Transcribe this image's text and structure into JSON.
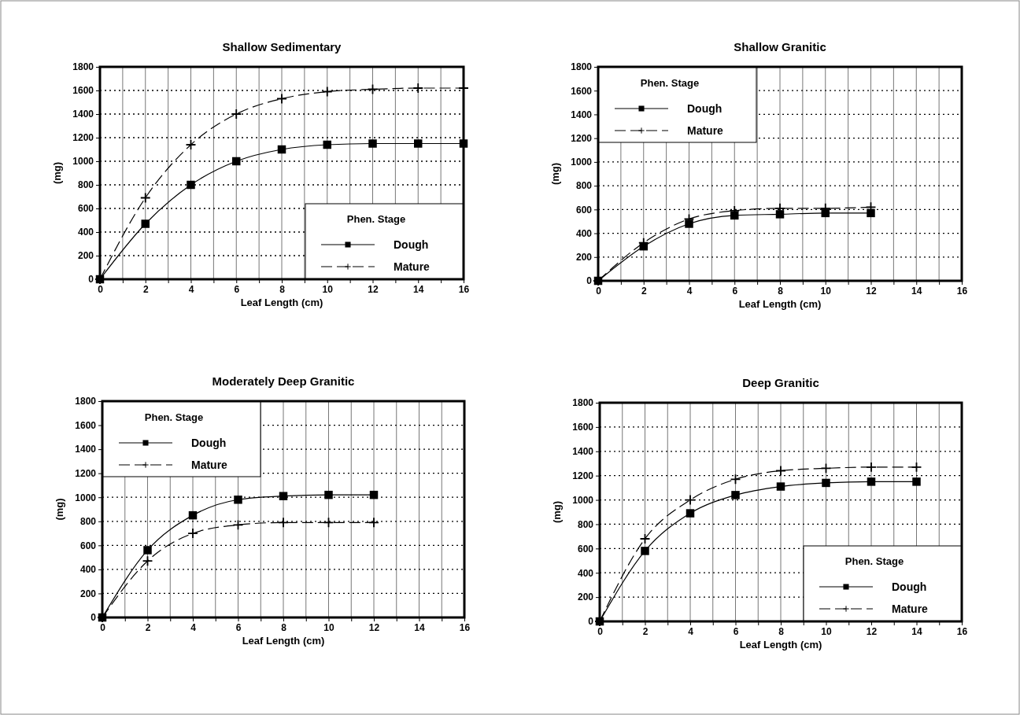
{
  "chart_data": [
    {
      "type": "line",
      "title": "Shallow Sedimentary",
      "xlabel": "Leaf Length (cm)",
      "ylabel": "(mg)",
      "legend_title": "Phen. Stage",
      "legend": "bottom right",
      "grid": true,
      "xlim": [
        0,
        16
      ],
      "ylim": [
        0,
        1800
      ],
      "xticks": [
        0,
        {
          "value": 1,
          "label": null
        },
        2,
        {
          "value": 3,
          "label": null
        },
        4,
        {
          "value": 5,
          "label": null
        },
        6,
        {
          "value": 7,
          "label": null
        },
        8,
        {
          "value": 9,
          "label": null
        },
        10,
        {
          "value": 11,
          "label": null
        },
        12,
        {
          "value": 13,
          "label": null
        },
        14,
        {
          "value": 15,
          "label": null
        },
        16
      ],
      "yticks": [
        0,
        200,
        400,
        600,
        800,
        1000,
        1200,
        1400,
        1600,
        1800
      ],
      "series": [
        {
          "name": "Dough",
          "color": "#000000",
          "marker": "square",
          "line_style": "solid",
          "x": [
            0,
            2,
            4,
            6,
            8,
            10,
            12,
            14,
            16
          ],
          "values": [
            0,
            470,
            800,
            1000,
            1100,
            1140,
            1150,
            1150,
            1150
          ]
        },
        {
          "name": "Mature",
          "color": "#000000",
          "marker": "cross",
          "line_style": "dashed",
          "x": [
            0,
            2,
            4,
            6,
            8,
            10,
            12,
            14,
            16
          ],
          "values": [
            0,
            690,
            1140,
            1400,
            1530,
            1590,
            1610,
            1620,
            1620
          ]
        }
      ]
    },
    {
      "type": "line",
      "title": "Shallow Granitic",
      "xlabel": "Leaf Length (cm)",
      "ylabel": "(mg)",
      "legend_title": "Phen. Stage",
      "legend": "top left",
      "grid": true,
      "xlim": [
        0,
        16
      ],
      "ylim": [
        0,
        1800
      ],
      "xticks": [
        0,
        {
          "value": 1,
          "label": null
        },
        2,
        {
          "value": 3,
          "label": null
        },
        4,
        {
          "value": 5,
          "label": null
        },
        6,
        {
          "value": 7,
          "label": null
        },
        8,
        {
          "value": 9,
          "label": null
        },
        10,
        {
          "value": 11,
          "label": null
        },
        12,
        {
          "value": 13,
          "label": null
        },
        14,
        {
          "value": 15,
          "label": null
        },
        16
      ],
      "yticks": [
        0,
        200,
        400,
        600,
        800,
        1000,
        1200,
        1400,
        1600,
        1800
      ],
      "series": [
        {
          "name": "Dough",
          "color": "#000000",
          "marker": "square",
          "line_style": "solid",
          "x": [
            0,
            2,
            4,
            6,
            8,
            10,
            12
          ],
          "values": [
            0,
            290,
            480,
            550,
            560,
            570,
            570
          ]
        },
        {
          "name": "Mature",
          "color": "#000000",
          "marker": "cross",
          "line_style": "dashed",
          "x": [
            0,
            2,
            4,
            6,
            8,
            10,
            12
          ],
          "values": [
            0,
            320,
            520,
            590,
            610,
            610,
            620
          ]
        }
      ]
    },
    {
      "type": "line",
      "title": "Moderately Deep Granitic",
      "xlabel": "Leaf Length (cm)",
      "ylabel": "(mg)",
      "legend_title": "Phen. Stage",
      "legend": "top left",
      "grid": true,
      "xlim": [
        0,
        16
      ],
      "ylim": [
        0,
        1800
      ],
      "xticks": [
        0,
        {
          "value": 1,
          "label": null
        },
        2,
        {
          "value": 3,
          "label": null
        },
        4,
        {
          "value": 5,
          "label": null
        },
        6,
        {
          "value": 7,
          "label": null
        },
        8,
        {
          "value": 9,
          "label": null
        },
        10,
        {
          "value": 11,
          "label": null
        },
        12,
        {
          "value": 13,
          "label": null
        },
        14,
        {
          "value": 15,
          "label": null
        },
        16
      ],
      "yticks": [
        0,
        200,
        400,
        600,
        800,
        1000,
        1200,
        1400,
        1600,
        1800
      ],
      "series": [
        {
          "name": "Dough",
          "color": "#000000",
          "marker": "square",
          "line_style": "solid",
          "x": [
            0,
            2,
            4,
            6,
            8,
            10,
            12
          ],
          "values": [
            0,
            560,
            850,
            980,
            1010,
            1020,
            1020
          ]
        },
        {
          "name": "Mature",
          "color": "#000000",
          "marker": "cross",
          "line_style": "dashed",
          "x": [
            0,
            2,
            4,
            6,
            8,
            10,
            12
          ],
          "values": [
            0,
            470,
            700,
            770,
            790,
            790,
            790
          ]
        }
      ]
    },
    {
      "type": "line",
      "title": "Deep Granitic",
      "xlabel": "Leaf Length (cm)",
      "ylabel": "(mg)",
      "legend_title": "Phen. Stage",
      "legend": "bottom right",
      "grid": true,
      "xlim": [
        0,
        16
      ],
      "ylim": [
        0,
        1800
      ],
      "xticks": [
        0,
        {
          "value": 1,
          "label": null
        },
        2,
        {
          "value": 3,
          "label": null
        },
        4,
        {
          "value": 5,
          "label": null
        },
        6,
        {
          "value": 7,
          "label": null
        },
        8,
        {
          "value": 9,
          "label": null
        },
        10,
        {
          "value": 11,
          "label": null
        },
        12,
        {
          "value": 13,
          "label": null
        },
        14,
        {
          "value": 15,
          "label": null
        },
        16
      ],
      "yticks": [
        0,
        200,
        400,
        600,
        800,
        1000,
        1200,
        1400,
        1600,
        1800
      ],
      "series": [
        {
          "name": "Dough",
          "color": "#000000",
          "marker": "square",
          "line_style": "solid",
          "x": [
            0,
            2,
            4,
            6,
            8,
            10,
            12,
            14
          ],
          "values": [
            0,
            580,
            890,
            1040,
            1110,
            1140,
            1150,
            1150
          ]
        },
        {
          "name": "Mature",
          "color": "#000000",
          "marker": "cross",
          "line_style": "dashed",
          "x": [
            0,
            2,
            4,
            6,
            8,
            10,
            12,
            14
          ],
          "values": [
            0,
            680,
            1000,
            1170,
            1240,
            1260,
            1270,
            1270
          ]
        }
      ]
    }
  ]
}
